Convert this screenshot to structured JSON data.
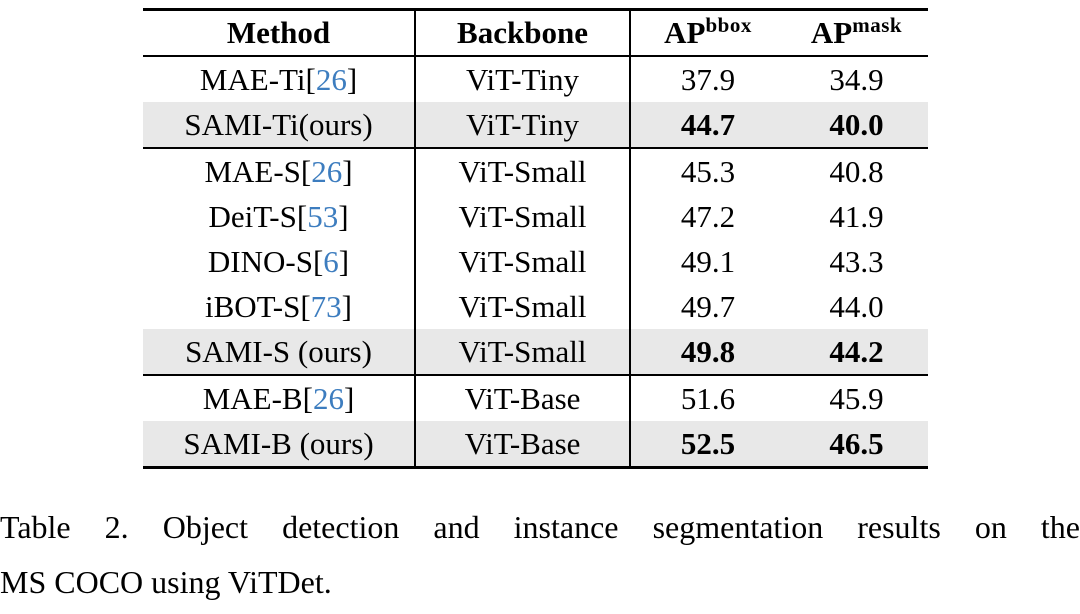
{
  "colors": {
    "citation_blue": "#3d7dbf",
    "highlight_row_gray": "#e8e8e8",
    "rule_black": "#000000"
  },
  "table": {
    "header": {
      "method": "Method",
      "backbone": "Backbone",
      "ap_bbox": {
        "base": "AP",
        "sup": "bbox"
      },
      "ap_mask": {
        "base": "AP",
        "sup": "mask"
      }
    },
    "rows": [
      {
        "method_pre": "MAE-Ti[",
        "cite": "26",
        "method_post": "]",
        "backbone": "ViT-Tiny",
        "ap_bbox": "37.9",
        "ap_mask": "34.9",
        "ours": false
      },
      {
        "method_pre": "SAMI-Ti(ours)",
        "cite": "",
        "method_post": "",
        "backbone": "ViT-Tiny",
        "ap_bbox": "44.7",
        "ap_mask": "40.0",
        "ours": true
      },
      {
        "method_pre": "MAE-S[",
        "cite": "26",
        "method_post": "]",
        "backbone": "ViT-Small",
        "ap_bbox": "45.3",
        "ap_mask": "40.8",
        "ours": false
      },
      {
        "method_pre": "DeiT-S[",
        "cite": "53",
        "method_post": "]",
        "backbone": "ViT-Small",
        "ap_bbox": "47.2",
        "ap_mask": "41.9",
        "ours": false
      },
      {
        "method_pre": "DINO-S[",
        "cite": "6",
        "method_post": "]",
        "backbone": "ViT-Small",
        "ap_bbox": "49.1",
        "ap_mask": "43.3",
        "ours": false
      },
      {
        "method_pre": "iBOT-S[",
        "cite": "73",
        "method_post": "]",
        "backbone": "ViT-Small",
        "ap_bbox": "49.7",
        "ap_mask": "44.0",
        "ours": false
      },
      {
        "method_pre": "SAMI-S (ours)",
        "cite": "",
        "method_post": "",
        "backbone": "ViT-Small",
        "ap_bbox": "49.8",
        "ap_mask": "44.2",
        "ours": true
      },
      {
        "method_pre": "MAE-B[",
        "cite": "26",
        "method_post": "]",
        "backbone": "ViT-Base",
        "ap_bbox": "51.6",
        "ap_mask": "45.9",
        "ours": false
      },
      {
        "method_pre": "SAMI-B (ours)",
        "cite": "",
        "method_post": "",
        "backbone": "ViT-Base",
        "ap_bbox": "52.5",
        "ap_mask": "46.5",
        "ours": true
      }
    ]
  },
  "caption": {
    "line1": "Table 2. Object detection and instance segmentation results on the",
    "line2": "MS COCO using ViTDet."
  }
}
